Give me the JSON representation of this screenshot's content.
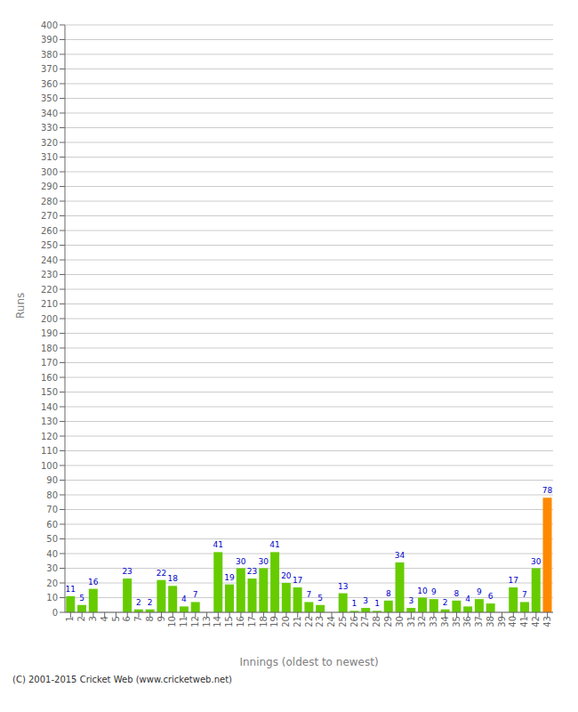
{
  "chart_data": {
    "type": "bar",
    "xlabel": "Innings (oldest to newest)",
    "ylabel": "Runs",
    "categories": [
      "1",
      "2",
      "3",
      "4",
      "5",
      "6",
      "7",
      "8",
      "9",
      "10",
      "11",
      "12",
      "13",
      "14",
      "15",
      "16",
      "17",
      "18",
      "19",
      "20",
      "21",
      "22",
      "23",
      "24",
      "25",
      "26",
      "27",
      "28",
      "29",
      "30",
      "31",
      "32",
      "33",
      "34",
      "35",
      "36",
      "37",
      "38",
      "39",
      "40",
      "41",
      "42",
      "43"
    ],
    "values": [
      11,
      5,
      16,
      0,
      0,
      23,
      2,
      2,
      22,
      18,
      4,
      7,
      0,
      41,
      19,
      30,
      23,
      30,
      41,
      20,
      17,
      7,
      5,
      0,
      13,
      1,
      3,
      1,
      8,
      34,
      3,
      10,
      9,
      2,
      8,
      4,
      9,
      6,
      0,
      17,
      7,
      30,
      78
    ],
    "colors": [
      "#66cc00",
      "#66cc00",
      "#66cc00",
      "#66cc00",
      "#66cc00",
      "#66cc00",
      "#66cc00",
      "#66cc00",
      "#66cc00",
      "#66cc00",
      "#66cc00",
      "#66cc00",
      "#66cc00",
      "#66cc00",
      "#66cc00",
      "#66cc00",
      "#66cc00",
      "#66cc00",
      "#66cc00",
      "#66cc00",
      "#66cc00",
      "#66cc00",
      "#66cc00",
      "#66cc00",
      "#66cc00",
      "#66cc00",
      "#66cc00",
      "#66cc00",
      "#66cc00",
      "#66cc00",
      "#66cc00",
      "#66cc00",
      "#66cc00",
      "#66cc00",
      "#66cc00",
      "#66cc00",
      "#66cc00",
      "#66cc00",
      "#66cc00",
      "#66cc00",
      "#66cc00",
      "#66cc00",
      "#ff8800"
    ],
    "ylim": [
      0,
      400
    ],
    "yticks": [
      0,
      10,
      20,
      30,
      40,
      50,
      60,
      70,
      80,
      90,
      100,
      110,
      120,
      130,
      140,
      150,
      160,
      170,
      180,
      190,
      200,
      210,
      220,
      230,
      240,
      250,
      260,
      270,
      280,
      290,
      300,
      310,
      320,
      330,
      340,
      350,
      360,
      370,
      380,
      390,
      400
    ],
    "grid": true,
    "data_labels": true,
    "annotations": [
      "(C) 2001-2015 Cricket Web (www.cricketweb.net)"
    ]
  }
}
